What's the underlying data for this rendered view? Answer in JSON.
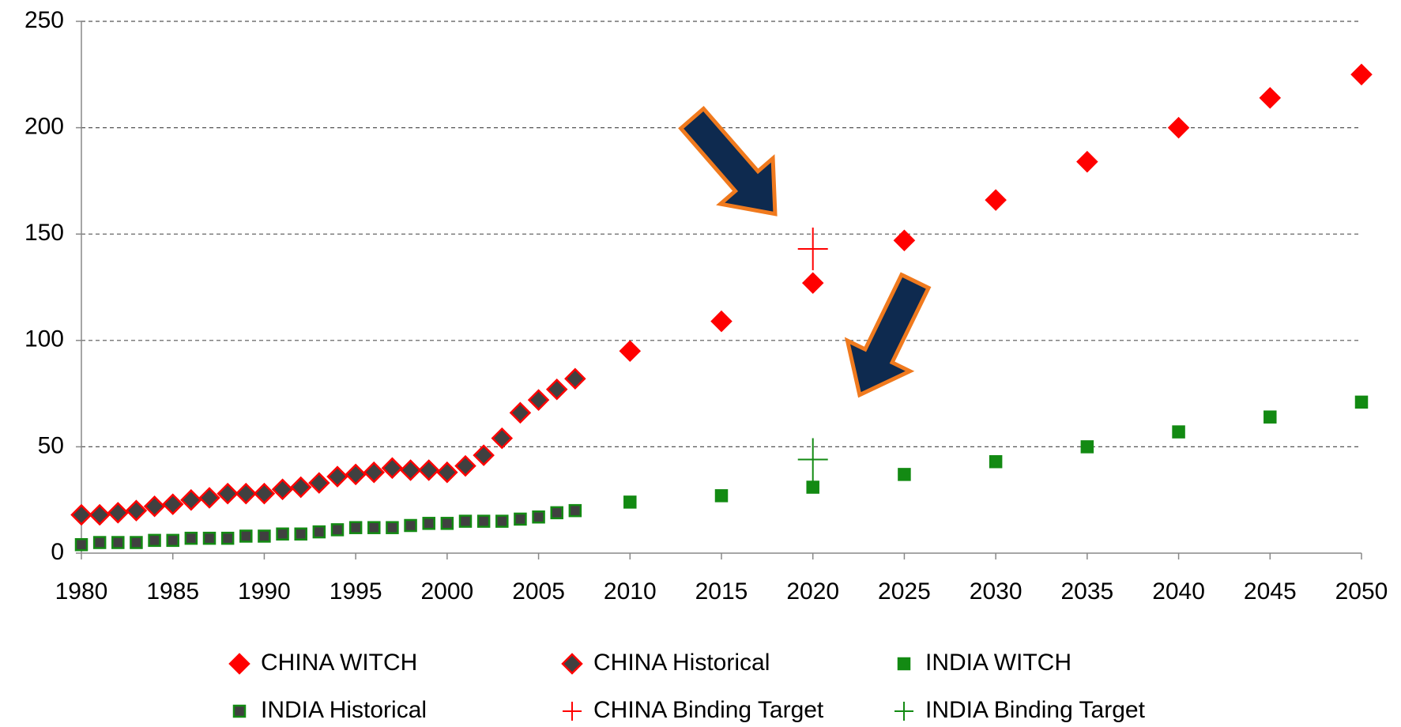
{
  "chart_data": {
    "type": "scatter",
    "xlim": [
      1980,
      2050
    ],
    "xticks": [
      1980,
      1985,
      1990,
      1995,
      2000,
      2005,
      2010,
      2015,
      2020,
      2025,
      2030,
      2035,
      2040,
      2045,
      2050
    ],
    "ylim": [
      0,
      250
    ],
    "yticks": [
      0,
      50,
      100,
      150,
      200,
      250
    ],
    "grid": true,
    "legend": "bottom",
    "series": [
      {
        "name": "CHINA WITCH",
        "color": "#ff0000",
        "marker": "diamond",
        "edgecolor": "#ff0000",
        "x": [
          2010,
          2015,
          2020,
          2025,
          2030,
          2035,
          2040,
          2045,
          2050
        ],
        "values": [
          95,
          109,
          127,
          147,
          166,
          184,
          200,
          214,
          225
        ]
      },
      {
        "name": "CHINA Historical",
        "color": "#404040",
        "marker": "diamond",
        "edgecolor": "#ff0000",
        "x": [
          1980,
          1981,
          1982,
          1983,
          1984,
          1985,
          1986,
          1987,
          1988,
          1989,
          1990,
          1991,
          1992,
          1993,
          1994,
          1995,
          1996,
          1997,
          1998,
          1999,
          2000,
          2001,
          2002,
          2003,
          2004,
          2005,
          2006,
          2007
        ],
        "values": [
          18,
          18,
          19,
          20,
          22,
          23,
          25,
          26,
          28,
          28,
          28,
          30,
          31,
          33,
          36,
          37,
          38,
          40,
          39,
          39,
          38,
          41,
          46,
          54,
          66,
          72,
          77,
          82
        ]
      },
      {
        "name": "INDIA WITCH",
        "color": "#138a13",
        "marker": "square",
        "edgecolor": "#138a13",
        "x": [
          2010,
          2015,
          2020,
          2025,
          2030,
          2035,
          2040,
          2045,
          2050
        ],
        "values": [
          24,
          27,
          31,
          37,
          43,
          50,
          57,
          64,
          71
        ]
      },
      {
        "name": "INDIA Historical",
        "color": "#404040",
        "marker": "square",
        "edgecolor": "#138a13",
        "x": [
          1980,
          1981,
          1982,
          1983,
          1984,
          1985,
          1986,
          1987,
          1988,
          1989,
          1990,
          1991,
          1992,
          1993,
          1994,
          1995,
          1996,
          1997,
          1998,
          1999,
          2000,
          2001,
          2002,
          2003,
          2004,
          2005,
          2006,
          2007
        ],
        "values": [
          4,
          5,
          5,
          5,
          6,
          6,
          7,
          7,
          7,
          8,
          8,
          9,
          9,
          10,
          11,
          12,
          12,
          12,
          13,
          14,
          14,
          15,
          15,
          15,
          16,
          17,
          19,
          20
        ]
      },
      {
        "name": "CHINA Binding Target",
        "color": "#ff0000",
        "marker": "plus",
        "edgecolor": "#ff0000",
        "x": [
          2020
        ],
        "values": [
          143
        ]
      },
      {
        "name": "INDIA Binding Target",
        "color": "#138a13",
        "marker": "plus",
        "edgecolor": "#138a13",
        "x": [
          2020
        ],
        "values": [
          44
        ]
      }
    ]
  }
}
